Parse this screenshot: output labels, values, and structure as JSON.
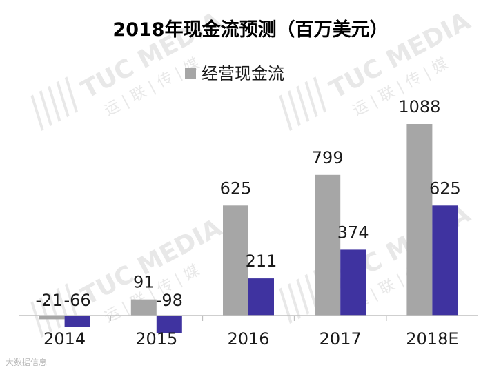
{
  "chart_data": {
    "type": "bar",
    "title": "2018年现金流预测（百万美元）",
    "categories": [
      "2014",
      "2015",
      "2016",
      "2017",
      "2018E"
    ],
    "series": [
      {
        "name": "经营现金流",
        "values": [
          -21,
          91,
          625,
          799,
          1088
        ],
        "color": "#a6a6a6"
      },
      {
        "values": [
          -66,
          -98,
          211,
          374,
          625
        ],
        "color": "#3f33a0"
      }
    ],
    "ylim": [
      -160,
      1140
    ],
    "legend_position": "top-left",
    "grid": false,
    "xlabel": "",
    "ylabel": ""
  },
  "watermark": {
    "text": "TUC MEDIA",
    "subtext": "运 | 联 | 传 | 媒"
  },
  "corner_mark": {
    "text": "大数据信息"
  }
}
